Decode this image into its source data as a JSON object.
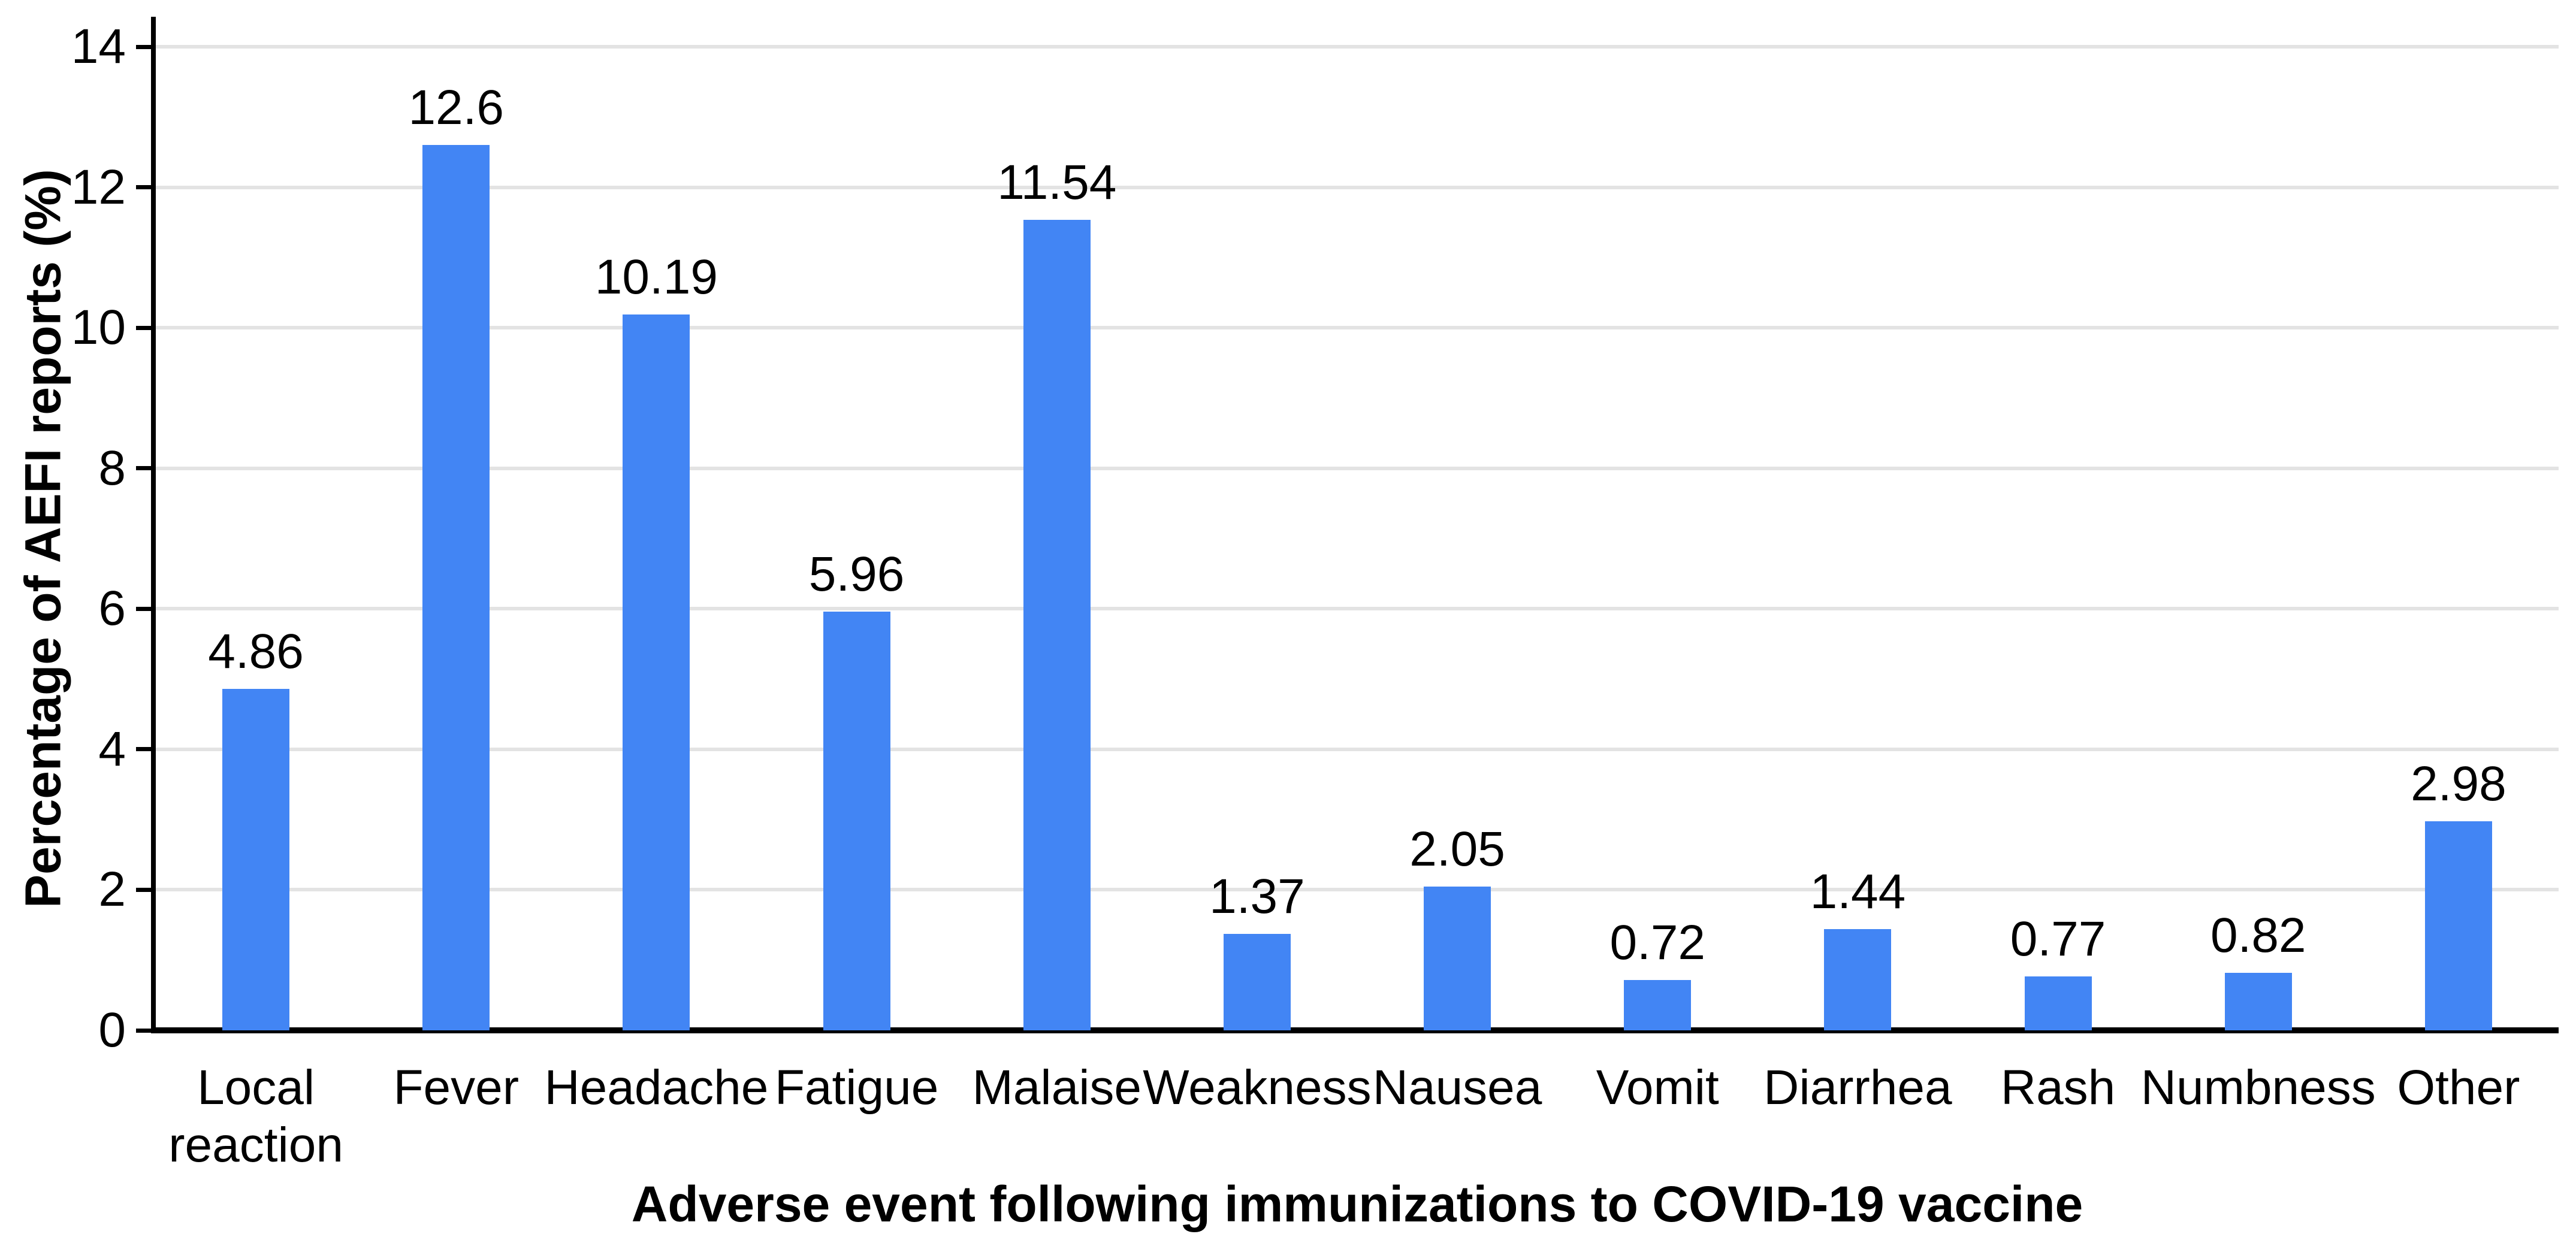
{
  "chart_data": {
    "type": "bar",
    "title": "",
    "xlabel": "Adverse event following immunizations to COVID-19 vaccine",
    "ylabel": "Percentage of AEFI reports (%)",
    "categories": [
      "Local reaction",
      "Fever",
      "Headache",
      "Fatigue",
      "Malaise",
      "Weakness",
      "Nausea",
      "Vomit",
      "Diarrhea",
      "Rash",
      "Numbness",
      "Other"
    ],
    "categories_display": [
      "Local\nreaction",
      "Fever",
      "Headache",
      "Fatigue",
      "Malaise",
      "Weakness",
      "Nausea",
      "Vomit",
      "Diarrhea",
      "Rash",
      "Numbness",
      "Other"
    ],
    "values": [
      4.86,
      12.6,
      10.19,
      5.96,
      11.54,
      1.37,
      2.05,
      0.72,
      1.44,
      0.77,
      0.82,
      2.98
    ],
    "value_labels": [
      "4.86",
      "12.6",
      "10.19",
      "5.96",
      "11.54",
      "1.37",
      "2.05",
      "0.72",
      "1.44",
      "0.77",
      "0.82",
      "2.98"
    ],
    "ylim": [
      0,
      14
    ],
    "ytick_step": 2,
    "ytick_labels": [
      "0",
      "2",
      "4",
      "6",
      "8",
      "10",
      "12",
      "14"
    ],
    "grid": "horizontal",
    "legend": "none",
    "bar_color": "#4285F4",
    "gridline_color": "#E3E3E3",
    "axis_color": "#000000",
    "text_color": "#000000",
    "background_color": "#FFFFFF"
  }
}
